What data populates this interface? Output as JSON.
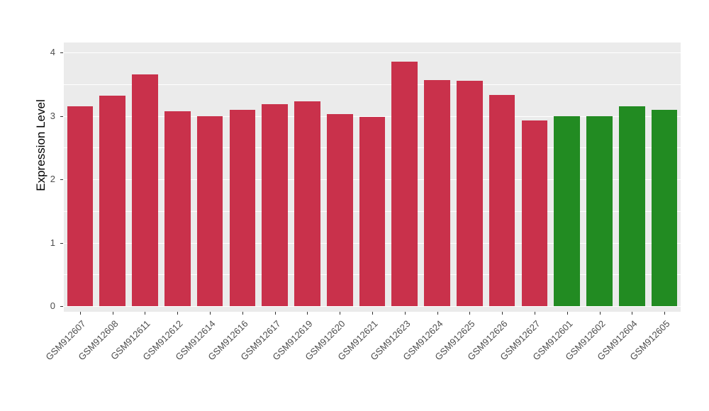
{
  "chart_data": {
    "type": "bar",
    "title": "",
    "xlabel": "",
    "ylabel": "Expression Level",
    "ylim": [
      0,
      4
    ],
    "yticks": [
      0,
      1,
      2,
      3,
      4
    ],
    "minor_gridlines": [
      0.5,
      1.5,
      2.5,
      3.5
    ],
    "grid": true,
    "legend_position": "none",
    "categories": [
      "GSM912607",
      "GSM912608",
      "GSM912611",
      "GSM912612",
      "GSM912614",
      "GSM912616",
      "GSM912617",
      "GSM912619",
      "GSM912620",
      "GSM912621",
      "GSM912623",
      "GSM912624",
      "GSM912625",
      "GSM912626",
      "GSM912627",
      "GSM912601",
      "GSM912602",
      "GSM912604",
      "GSM912605"
    ],
    "values": [
      3.15,
      3.32,
      3.65,
      3.07,
      3.0,
      3.09,
      3.18,
      3.23,
      3.03,
      2.98,
      3.85,
      3.56,
      3.55,
      3.33,
      2.93,
      2.99,
      3.0,
      3.15,
      3.1
    ],
    "bar_colors": [
      "#C9314B",
      "#C9314B",
      "#C9314B",
      "#C9314B",
      "#C9314B",
      "#C9314B",
      "#C9314B",
      "#C9314B",
      "#C9314B",
      "#C9314B",
      "#C9314B",
      "#C9314B",
      "#C9314B",
      "#C9314B",
      "#C9314B",
      "#228B22",
      "#228B22",
      "#228B22",
      "#228B22"
    ],
    "colors": {
      "group_red": "#C9314B",
      "group_green": "#228B22",
      "panel_background": "#EBEBEB",
      "grid_color": "#FFFFFF",
      "tick_text": "#4D4D4D",
      "axis_title": "#000000",
      "figure_background": "#FFFFFF"
    }
  }
}
